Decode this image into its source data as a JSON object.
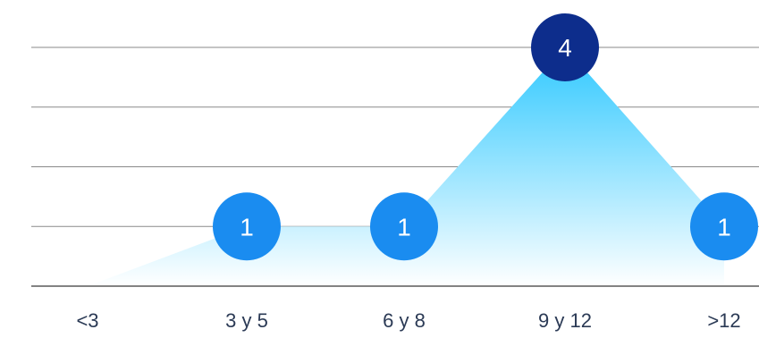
{
  "chart_data": {
    "type": "area",
    "categories": [
      "<3",
      "3 y 5",
      "6 y 8",
      "9 y 12",
      ">12"
    ],
    "values": [
      0,
      1,
      1,
      4,
      1
    ],
    "data_labels": [
      "",
      "1",
      "1",
      "4",
      "1"
    ],
    "ylim": [
      0,
      4
    ],
    "grid": true,
    "title": "",
    "xlabel": "",
    "ylabel": ""
  },
  "colors": {
    "bubble": "#1a8cf0",
    "bubble_max": "#0d2d8c",
    "area_top": "#2ec8ff",
    "area_bottom": "#ffffff",
    "grid": "#8a8a8a",
    "baseline": "#5a5a5a",
    "tick_text": "#2b3a55"
  }
}
